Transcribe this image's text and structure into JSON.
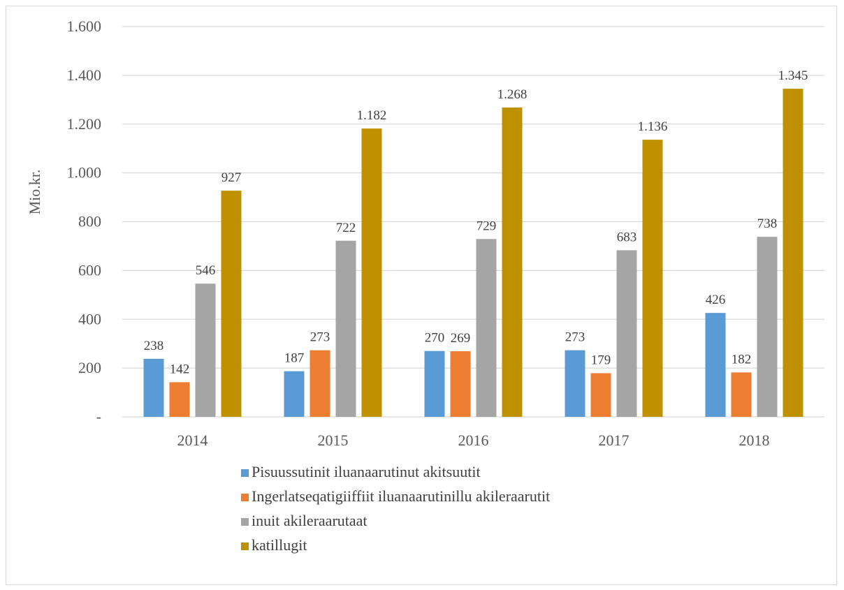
{
  "chart_data": {
    "type": "bar",
    "title": "",
    "ylabel": "Mio.kr.",
    "xlabel": "",
    "categories": [
      "2014",
      "2015",
      "2016",
      "2017",
      "2018"
    ],
    "ylim": [
      0,
      1600
    ],
    "yticks": [
      0,
      200,
      400,
      600,
      800,
      1000,
      1200,
      1400,
      1600
    ],
    "ytick_labels": [
      "-",
      "200",
      "400",
      "600",
      "800",
      "1.000",
      "1.200",
      "1.400",
      "1.600"
    ],
    "grid": true,
    "legend_position": "bottom",
    "series": [
      {
        "name": "Pisuussutinit iluanaarutinut akitsuutit",
        "color": "#5b9bd5",
        "values": [
          238,
          187,
          270,
          273,
          426
        ],
        "labels": [
          "238",
          "187",
          "270",
          "273",
          "426"
        ]
      },
      {
        "name": "Ingerlatseqatigiiffiit iluanaarutinillu akileraarutit",
        "color": "#ed7d31",
        "values": [
          142,
          273,
          269,
          179,
          182
        ],
        "labels": [
          "142",
          "273",
          "269",
          "179",
          "182"
        ]
      },
      {
        "name": "inuit akileraarutaat",
        "color": "#a5a5a5",
        "values": [
          546,
          722,
          729,
          683,
          738
        ],
        "labels": [
          "546",
          "722",
          "729",
          "683",
          "738"
        ]
      },
      {
        "name": "katillugit",
        "color": "#bf9000",
        "values": [
          927,
          1182,
          1268,
          1136,
          1345
        ],
        "labels": [
          "927",
          "1.182",
          "1.268",
          "1.136",
          "1.345"
        ]
      }
    ]
  }
}
